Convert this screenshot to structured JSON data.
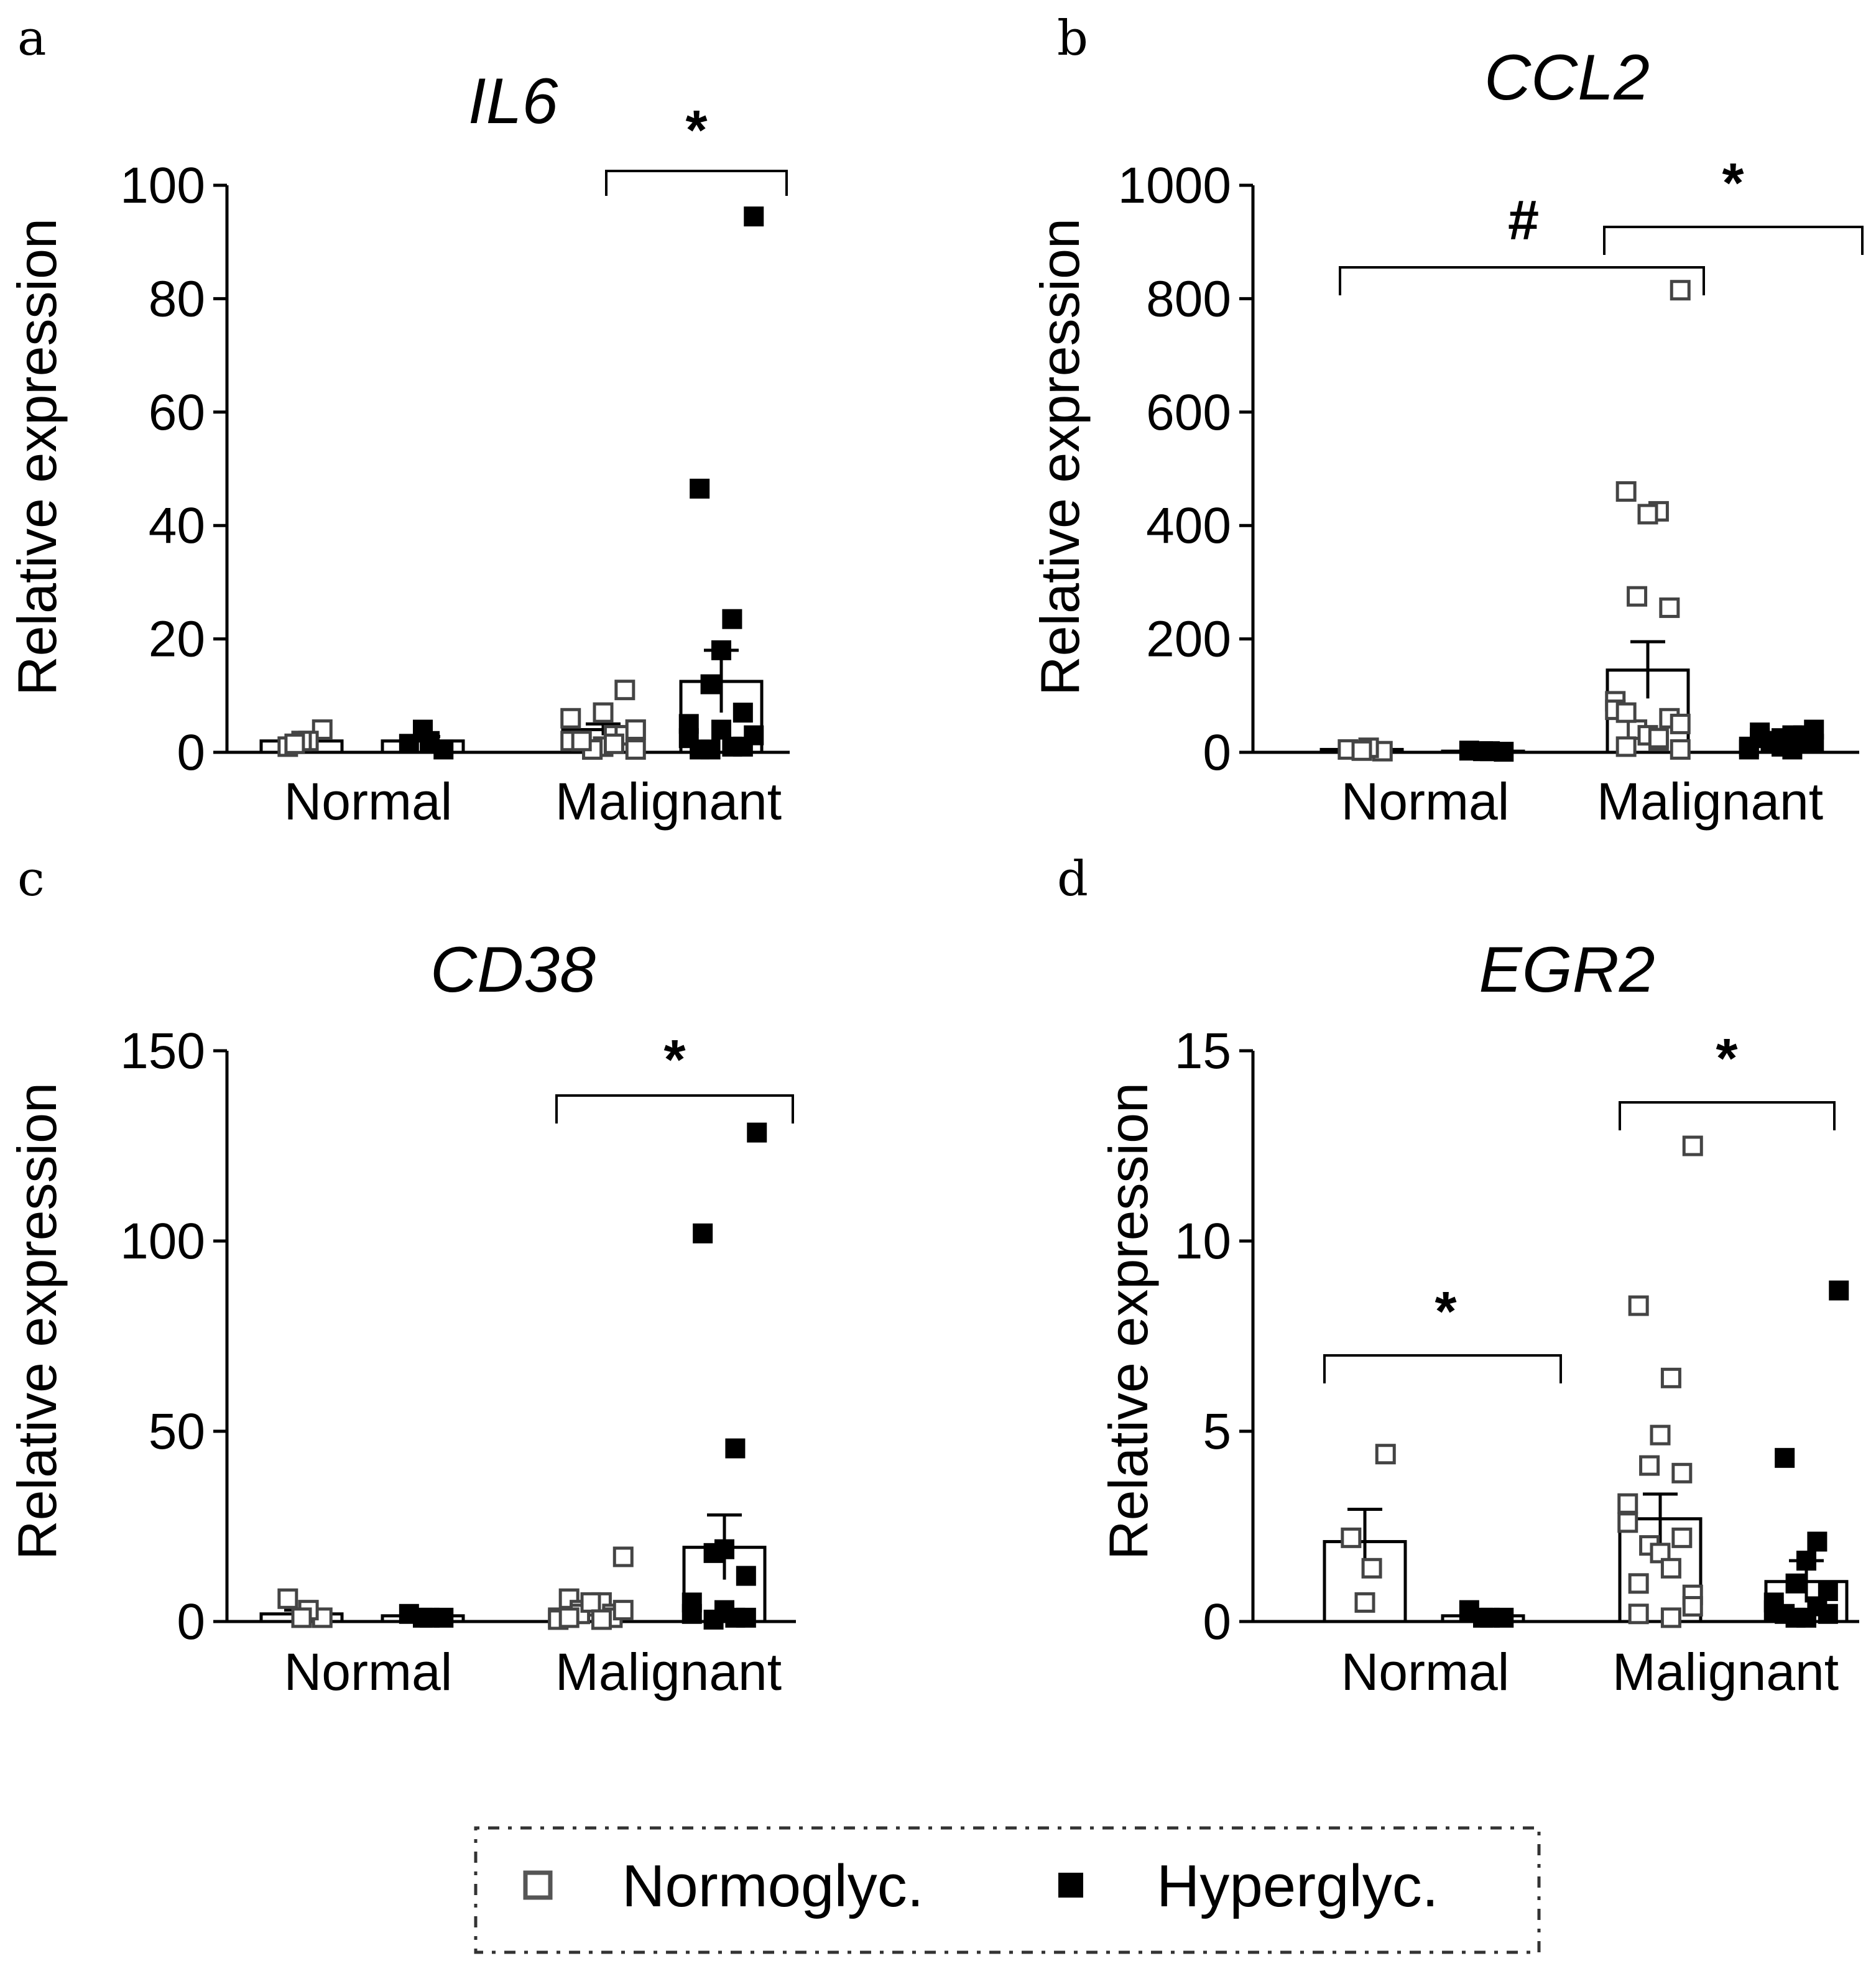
{
  "chart_data": [
    {
      "panel": "a",
      "title": "IL6",
      "type": "bar",
      "ylabel": "Relative expression",
      "ylim": [
        0,
        100
      ],
      "yticks": [
        "0",
        "20",
        "40",
        "60",
        "80",
        "100"
      ],
      "categories": [
        "Normal",
        "Malignant"
      ],
      "series": [
        {
          "name": "Normoglyc.",
          "means": [
            2,
            4
          ],
          "sem": [
            0.5,
            1
          ],
          "points": [
            [
              4,
              1,
              2,
              2,
              1.5
            ],
            [
              4,
              2,
              3,
              1,
              0.5,
              11,
              6,
              2,
              3,
              0.5,
              7,
              1.5,
              2,
              0.5,
              4
            ]
          ]
        },
        {
          "name": "Hyperglyc.",
          "means": [
            2,
            12.5
          ],
          "sem": [
            0.8,
            5.5
          ],
          "points": [
            [
              0.5,
              1.5,
              2,
              4
            ],
            [
              94.5,
              46.5,
              23.5,
              18,
              12,
              7,
              5,
              2.5,
              1,
              0.5,
              4,
              1,
              0.5,
              3
            ]
          ]
        }
      ],
      "significance": [
        {
          "label": "*",
          "between": "Malignant Normoglyc. vs Hyperglyc."
        }
      ]
    },
    {
      "panel": "b",
      "title": "CCL2",
      "type": "bar",
      "ylabel": "Relative expression",
      "ylim": [
        0,
        1000
      ],
      "yticks": [
        "0",
        "200",
        "400",
        "600",
        "800",
        "1000"
      ],
      "categories": [
        "Normal",
        "Malignant"
      ],
      "series": [
        {
          "name": "Normoglyc.",
          "means": [
            5,
            145
          ],
          "sem": [
            2,
            50
          ],
          "points": [
            [
              2,
              5,
              8,
              3
            ],
            [
              815,
              460,
              425,
              420,
              275,
              255,
              90,
              75,
              60,
              40,
              30,
              20,
              10,
              5,
              50,
              70,
              25
            ]
          ]
        },
        {
          "name": "Hyperglyc.",
          "means": [
            2,
            20
          ],
          "sem": [
            0.5,
            4
          ],
          "points": [
            [
              1,
              3,
              2,
              2
            ],
            [
              40,
              35,
              30,
              25,
              20,
              15,
              10,
              5,
              30,
              20,
              10,
              5,
              25,
              15
            ]
          ]
        }
      ],
      "significance": [
        {
          "label": "#",
          "between": "Normal Normoglyc. vs Malignant Normoglyc."
        },
        {
          "label": "*",
          "between": "Malignant Normoglyc. vs Hyperglyc."
        }
      ]
    },
    {
      "panel": "c",
      "title": "CD38",
      "type": "bar",
      "ylabel": "Relative expression",
      "ylim": [
        0,
        150
      ],
      "yticks": [
        "0",
        "50",
        "100",
        "150"
      ],
      "categories": [
        "Normal",
        "Malignant"
      ],
      "series": [
        {
          "name": "Normoglyc.",
          "means": [
            2,
            3
          ],
          "sem": [
            1,
            1
          ],
          "points": [
            [
              1,
              6,
              3,
              1
            ],
            [
              17,
              6,
              5,
              4,
              3,
              2,
              1,
              0.5,
              1,
              2,
              5,
              0.5,
              1,
              3
            ]
          ]
        },
        {
          "name": "Hyperglyc.",
          "means": [
            1.5,
            19.5
          ],
          "sem": [
            0.5,
            8.5
          ],
          "points": [
            [
              1,
              2,
              1,
              1
            ],
            [
              128.5,
              102,
              45.5,
              19,
              18,
              12,
              5,
              2,
              1,
              0.5,
              3,
              1
            ]
          ]
        }
      ],
      "significance": [
        {
          "label": "*",
          "between": "Malignant Normoglyc. vs Hyperglyc."
        }
      ]
    },
    {
      "panel": "d",
      "title": "EGR2",
      "type": "bar",
      "ylabel": "Relative expression",
      "ylim": [
        0,
        15
      ],
      "yticks": [
        "0",
        "5",
        "10",
        "15"
      ],
      "categories": [
        "Normal",
        "Malignant"
      ],
      "series": [
        {
          "name": "Normoglyc.",
          "means": [
            2.1,
            2.7
          ],
          "sem": [
            0.85,
            0.65
          ],
          "points": [
            [
              4.4,
              2.2,
              1.4,
              0.5
            ],
            [
              12.5,
              8.3,
              6.4,
              4.9,
              4.1,
              3.9,
              3.1,
              2.6,
              2.2,
              2.0,
              1.8,
              1.4,
              1.0,
              0.7,
              0.4,
              0.2,
              0.1
            ]
          ]
        },
        {
          "name": "Hyperglyc.",
          "means": [
            0.15,
            1.05
          ],
          "sem": [
            0.05,
            0.55
          ],
          "points": [
            [
              0.1,
              0.3,
              0.1,
              0.1
            ],
            [
              8.7,
              4.3,
              2.1,
              1.6,
              1.0,
              0.8,
              0.5,
              0.3,
              0.2,
              0.1,
              0.1,
              0.4,
              0.2
            ]
          ]
        }
      ],
      "significance": [
        {
          "label": "*",
          "between": "Normal Normoglyc. vs Hyperglyc."
        },
        {
          "label": "*",
          "between": "Malignant Normoglyc. vs Hyperglyc."
        }
      ]
    }
  ],
  "legend": {
    "items": [
      {
        "label": "Normoglyc.",
        "marker": "open-square"
      },
      {
        "label": "Hyperglyc.",
        "marker": "filled-square"
      }
    ]
  }
}
